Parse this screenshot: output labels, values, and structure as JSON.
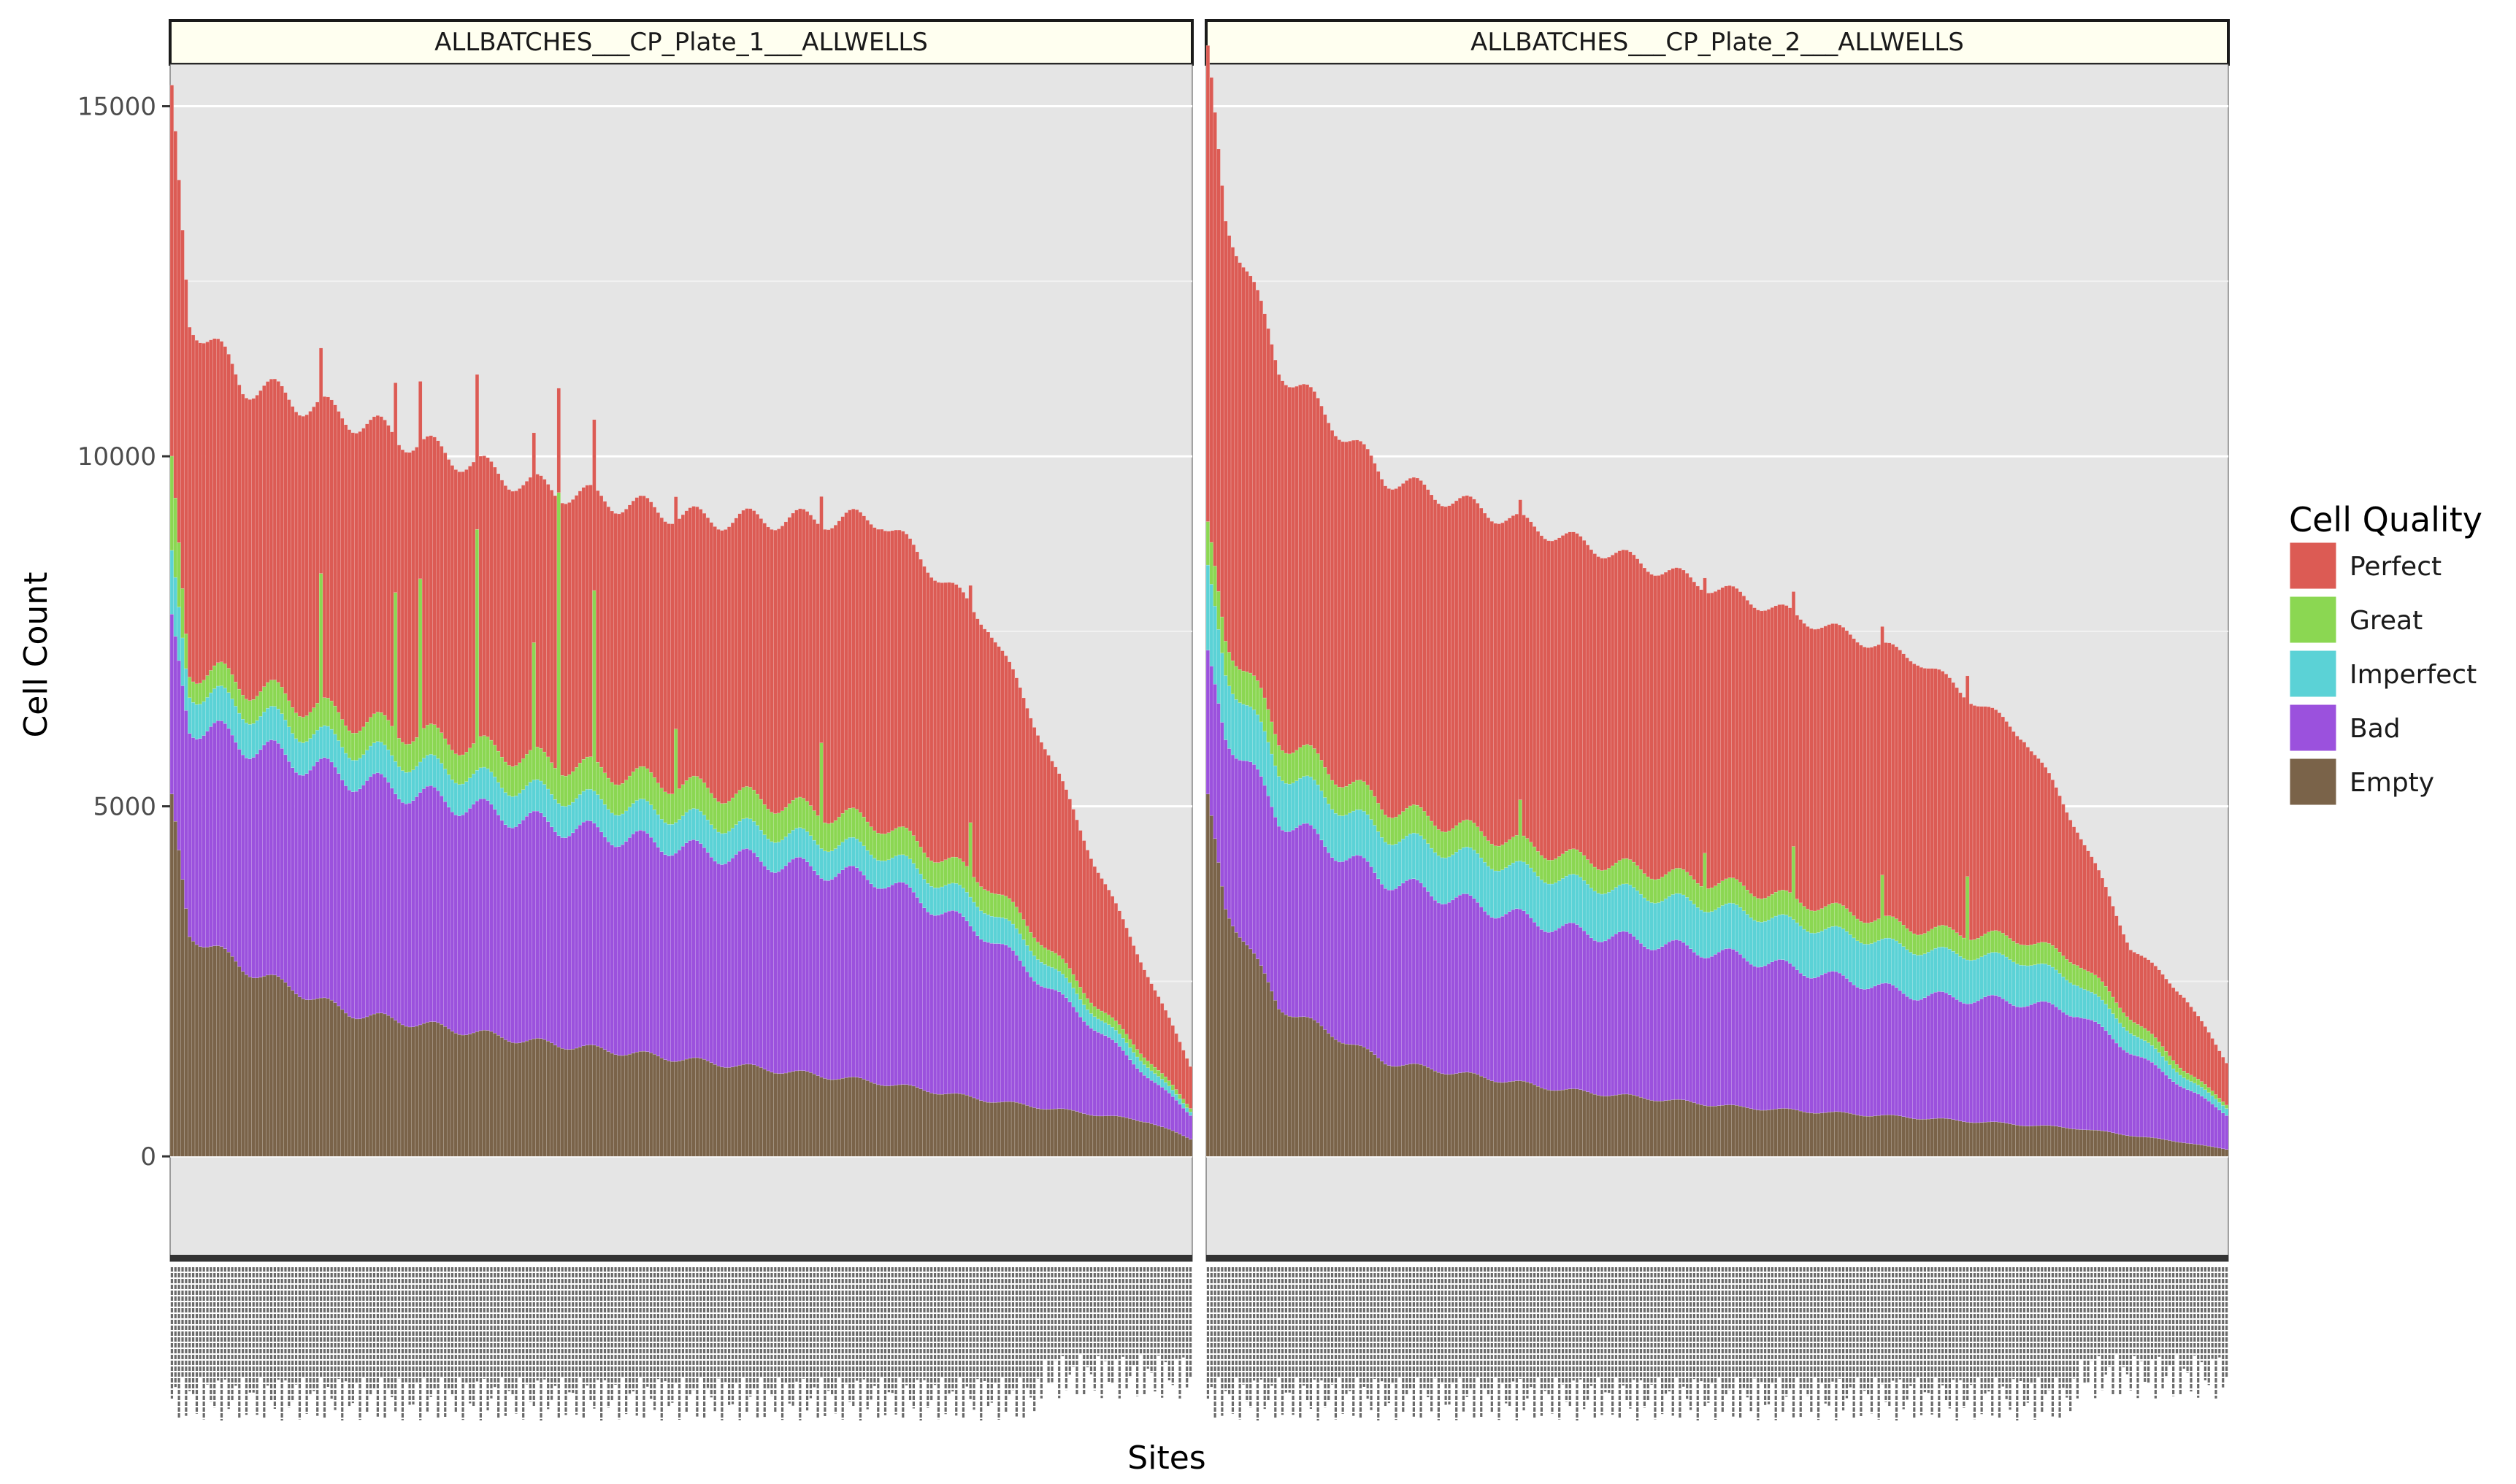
{
  "chart_data": {
    "type": "bar",
    "stacked": true,
    "xlabel": "Sites",
    "ylabel": "Cell Count",
    "ylim": [
      -1500,
      15600
    ],
    "yticks": [
      0,
      5000,
      10000,
      15000
    ],
    "y_tick_labels": [
      "0",
      "5000",
      "10000",
      "15000"
    ],
    "grid": true,
    "sort_order": "descending by total cell count",
    "legend": {
      "title": "Cell Quality",
      "position": "right",
      "entries": [
        {
          "name": "Perfect",
          "color": "#DC5B54"
        },
        {
          "name": "Great",
          "color": "#8BD752"
        },
        {
          "name": "Imperfect",
          "color": "#5BD2D6"
        },
        {
          "name": "Bad",
          "color": "#9B51DD"
        },
        {
          "name": "Empty",
          "color": "#7A6349"
        }
      ]
    },
    "series_order": [
      "Empty",
      "Bad",
      "Imperfect",
      "Great",
      "Perfect"
    ],
    "colors": {
      "Perfect": "#DC5B54",
      "Great": "#8BD752",
      "Imperfect": "#5BD2D6",
      "Bad": "#9B51DD",
      "Empty": "#7A6349"
    },
    "panels": [
      {
        "title": "ALLBATCHES___CP_Plate_1___ALLWELLS",
        "n_sites": 288,
        "profile_index": [
          0,
          5,
          20,
          50,
          100,
          150,
          200,
          230,
          245,
          260,
          275,
          287
        ],
        "profile": {
          "Perfect": [
            5300,
            5000,
            4300,
            4300,
            3900,
            3850,
            4350,
            3700,
            2900,
            2000,
            1200,
            600
          ],
          "Great": [
            1300,
            300,
            350,
            400,
            450,
            450,
            400,
            350,
            250,
            150,
            100,
            50
          ],
          "Imperfect": [
            900,
            500,
            500,
            450,
            450,
            450,
            400,
            400,
            350,
            200,
            150,
            50
          ],
          "Bad": [
            2500,
            3000,
            3200,
            3350,
            3150,
            3000,
            2900,
            2350,
            1800,
            1250,
            650,
            350
          ],
          "Empty": [
            5000,
            3200,
            2700,
            2050,
            1650,
            1350,
            1050,
            800,
            700,
            600,
            500,
            250
          ]
        },
        "spikes": [
          {
            "site": 42,
            "Great": 1800
          },
          {
            "site": 63,
            "Great": 2000
          },
          {
            "site": 70,
            "Great": 2200
          },
          {
            "site": 86,
            "Great": 3000
          },
          {
            "site": 102,
            "Great": 1500
          },
          {
            "site": 109,
            "Great": 4000
          },
          {
            "site": 119,
            "Great": 2400
          },
          {
            "site": 142,
            "Great": 900
          },
          {
            "site": 183,
            "Great": 1100
          },
          {
            "site": 225,
            "Great": 700
          }
        ]
      },
      {
        "title": "ALLBATCHES___CP_Plate_2___ALLWELLS",
        "n_sites": 288,
        "profile_index": [
          0,
          5,
          20,
          50,
          100,
          150,
          200,
          230,
          245,
          260,
          275,
          287
        ],
        "profile": {
          "Perfect": [
            6800,
            6000,
            5300,
            4700,
            4550,
            4150,
            3850,
            2900,
            1900,
            1000,
            1050,
            600
          ],
          "Great": [
            600,
            500,
            450,
            400,
            350,
            350,
            300,
            300,
            300,
            200,
            100,
            50
          ],
          "Imperfect": [
            1200,
            900,
            700,
            650,
            700,
            650,
            650,
            600,
            450,
            300,
            150,
            100
          ],
          "Bad": [
            2000,
            2500,
            2700,
            2600,
            2300,
            2150,
            1750,
            1750,
            1650,
            1200,
            800,
            500
          ],
          "Empty": [
            5000,
            3600,
            2150,
            1350,
            950,
            700,
            550,
            450,
            400,
            300,
            200,
            100
          ]
        },
        "spikes": [
          {
            "site": 88,
            "Great": 500
          },
          {
            "site": 140,
            "Great": 500
          },
          {
            "site": 165,
            "Great": 700
          },
          {
            "site": 190,
            "Great": 600
          },
          {
            "site": 214,
            "Great": 900
          }
        ]
      }
    ]
  }
}
